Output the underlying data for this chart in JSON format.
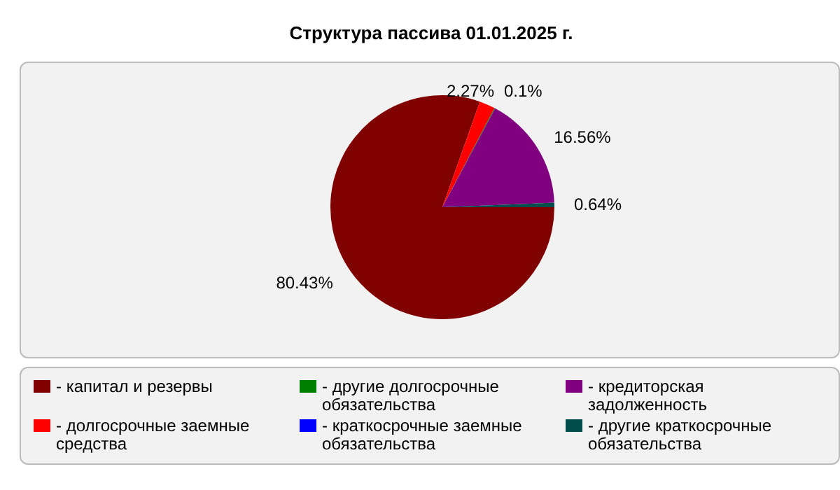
{
  "chart_data": {
    "type": "pie",
    "title": "Структура пассива 01.01.2025 г.",
    "categories": [
      "- капитал и резервы",
      "- долгосрочные заемные средства",
      "- другие долгосрочные обязательства",
      "- краткосрочные заемные обязательства",
      "- кредиторская задолженность",
      "- другие краткосрочные обязательства"
    ],
    "values": [
      80.43,
      2.27,
      0.1,
      0,
      16.56,
      0.64
    ],
    "colors": [
      "#800000",
      "#ff0000",
      "#008000",
      "#0000ff",
      "#800080",
      "#004d4d"
    ],
    "value_labels": [
      "80.43%",
      "2.27%",
      "0.1%",
      null,
      "16.56%",
      "0.64%"
    ],
    "legend": "bottom"
  }
}
